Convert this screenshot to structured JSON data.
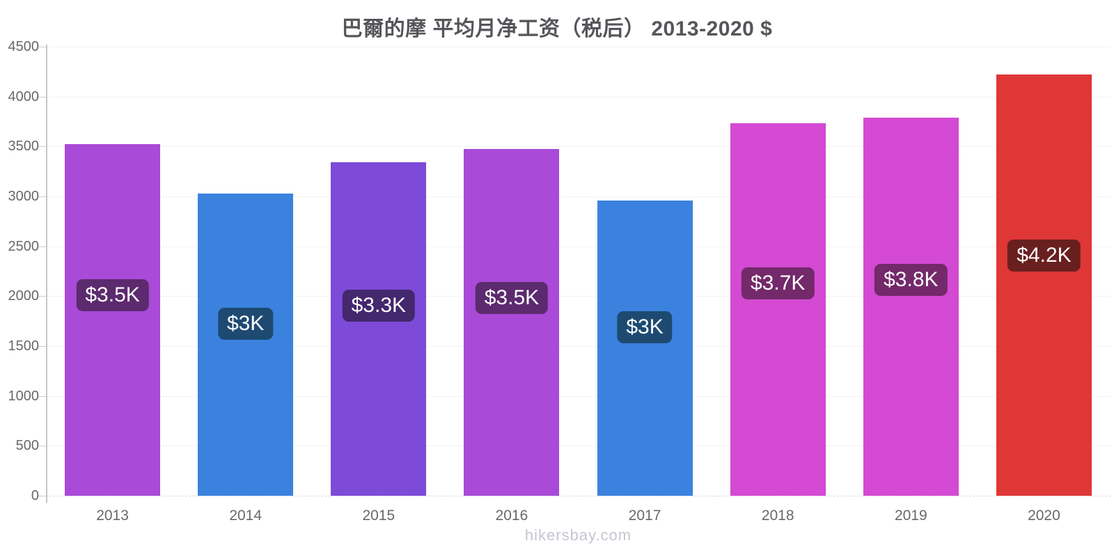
{
  "title": "巴爾的摩 平均月净工资（税后） 2013-2020 $",
  "footer": "hikersbay.com",
  "colors": {
    "title_text": "#55565a",
    "axis_line": "#c6c6ca",
    "grid_line": "#f2f2f4",
    "tick_text": "#68686c",
    "watermark_text": "#c5c5d2",
    "bar_label_text": "#ffffff"
  },
  "chart_data": {
    "type": "bar",
    "title": "巴爾的摩 平均月净工资（税后） 2013-2020 $",
    "categories": [
      "2013",
      "2014",
      "2015",
      "2016",
      "2017",
      "2018",
      "2019",
      "2020"
    ],
    "values": [
      3524,
      3025,
      3342,
      3476,
      2956,
      3735,
      3790,
      4224
    ],
    "bar_labels": [
      "$3.5K",
      "$3K",
      "$3.3K",
      "$3.5K",
      "$3K",
      "$3.7K",
      "$3.8K",
      "$4.2K"
    ],
    "bar_colors": [
      "#a94ad8",
      "#3b82de",
      "#7e4bd9",
      "#a94ad8",
      "#3b82de",
      "#d44ad3",
      "#d44ad3",
      "#df3636"
    ],
    "label_bg_colors": [
      "#5c2a6e",
      "#1e4a72",
      "#44286e",
      "#5c2a6e",
      "#1e4a72",
      "#73296a",
      "#73296a",
      "#6a1f1f"
    ],
    "xlabel": "",
    "ylabel": "",
    "ylim": [
      0,
      4500
    ],
    "y_ticks": [
      0,
      500,
      1000,
      1500,
      2000,
      2500,
      3000,
      3500,
      4000,
      4500
    ],
    "grid": true,
    "legend": false
  }
}
